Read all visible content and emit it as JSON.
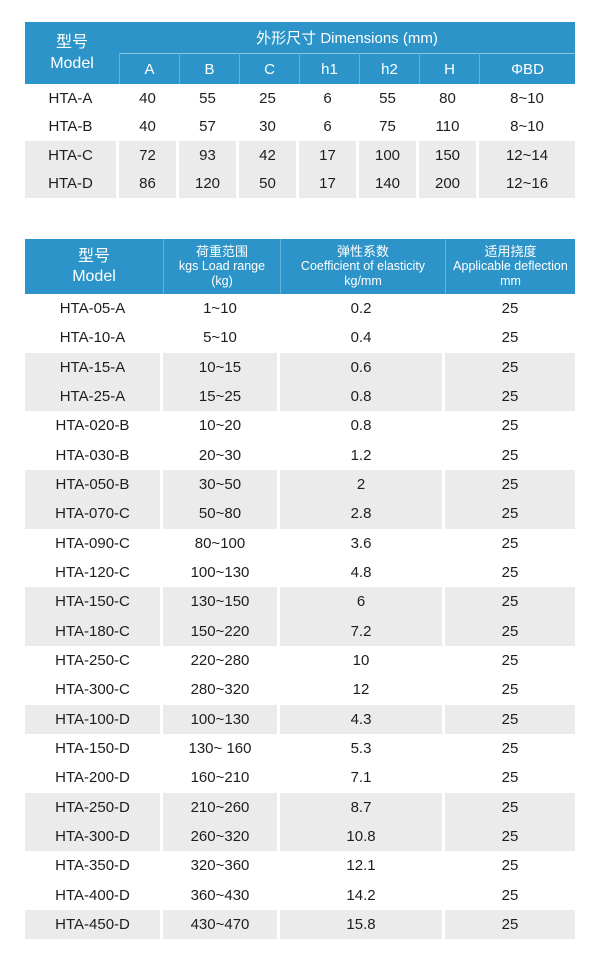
{
  "colors": {
    "header_blue": "#2C94C8",
    "shaded_row_gray": "#EBEBEB",
    "header_text": "#FFFFFF",
    "body_text": "#1E1E1E"
  },
  "dimensions_table": {
    "model_header": {
      "zh": "型号",
      "en": "Model"
    },
    "group_header": "外形尺寸 Dimensions (mm)",
    "sub_headers": [
      "A",
      "B",
      "C",
      "h1",
      "h2",
      "H",
      "ΦBD"
    ],
    "rows": [
      {
        "model": "HTA-A",
        "values": [
          "40",
          "55",
          "25",
          "6",
          "55",
          "80",
          "8~10"
        ],
        "shaded": false
      },
      {
        "model": "HTA-B",
        "values": [
          "40",
          "57",
          "30",
          "6",
          "75",
          "110",
          "8~10"
        ],
        "shaded": false
      },
      {
        "model": "HTA-C",
        "values": [
          "72",
          "93",
          "42",
          "17",
          "100",
          "150",
          "12~14"
        ],
        "shaded": true
      },
      {
        "model": "HTA-D",
        "values": [
          "86",
          "120",
          "50",
          "17",
          "140",
          "200",
          "12~16"
        ],
        "shaded": true
      }
    ]
  },
  "load_table": {
    "model_header": {
      "zh": "型号",
      "en": "Model"
    },
    "columns": [
      {
        "zh": "荷重范围",
        "en": "kgs Load range",
        "unit": "(kg)"
      },
      {
        "zh": "弹性系数",
        "en": "Coefficient of elasticity",
        "unit": "kg/mm"
      },
      {
        "zh": "适用挠度",
        "en": "Applicable deflection",
        "unit": "mm"
      }
    ],
    "rows": [
      {
        "model": "HTA-05-A",
        "load_range": "1~10",
        "coefficient": "0.2",
        "deflection": "25",
        "shaded": false
      },
      {
        "model": "HTA-10-A",
        "load_range": "5~10",
        "coefficient": "0.4",
        "deflection": "25",
        "shaded": false
      },
      {
        "model": "HTA-15-A",
        "load_range": "10~15",
        "coefficient": "0.6",
        "deflection": "25",
        "shaded": true
      },
      {
        "model": "HTA-25-A",
        "load_range": "15~25",
        "coefficient": "0.8",
        "deflection": "25",
        "shaded": true
      },
      {
        "model": "HTA-020-B",
        "load_range": "10~20",
        "coefficient": "0.8",
        "deflection": "25",
        "shaded": false
      },
      {
        "model": "HTA-030-B",
        "load_range": "20~30",
        "coefficient": "1.2",
        "deflection": "25",
        "shaded": false
      },
      {
        "model": "HTA-050-B",
        "load_range": "30~50",
        "coefficient": "2",
        "deflection": "25",
        "shaded": true
      },
      {
        "model": "HTA-070-C",
        "load_range": "50~80",
        "coefficient": "2.8",
        "deflection": "25",
        "shaded": true
      },
      {
        "model": "HTA-090-C",
        "load_range": "80~100",
        "coefficient": "3.6",
        "deflection": "25",
        "shaded": false
      },
      {
        "model": "HTA-120-C",
        "load_range": "100~130",
        "coefficient": "4.8",
        "deflection": "25",
        "shaded": false
      },
      {
        "model": "HTA-150-C",
        "load_range": "130~150",
        "coefficient": "6",
        "deflection": "25",
        "shaded": true
      },
      {
        "model": "HTA-180-C",
        "load_range": "150~220",
        "coefficient": "7.2",
        "deflection": "25",
        "shaded": true
      },
      {
        "model": "HTA-250-C",
        "load_range": "220~280",
        "coefficient": "10",
        "deflection": "25",
        "shaded": false
      },
      {
        "model": "HTA-300-C",
        "load_range": "280~320",
        "coefficient": "12",
        "deflection": "25",
        "shaded": false
      },
      {
        "model": "HTA-100-D",
        "load_range": "100~130",
        "coefficient": "4.3",
        "deflection": "25",
        "shaded": true
      },
      {
        "model": "HTA-150-D",
        "load_range": "130~ 160",
        "coefficient": "5.3",
        "deflection": "25",
        "shaded": false
      },
      {
        "model": "HTA-200-D",
        "load_range": "160~210",
        "coefficient": "7.1",
        "deflection": "25",
        "shaded": false
      },
      {
        "model": "HTA-250-D",
        "load_range": "210~260",
        "coefficient": "8.7",
        "deflection": "25",
        "shaded": true
      },
      {
        "model": "HTA-300-D",
        "load_range": "260~320",
        "coefficient": "10.8",
        "deflection": "25",
        "shaded": true
      },
      {
        "model": "HTA-350-D",
        "load_range": "320~360",
        "coefficient": "12.1",
        "deflection": "25",
        "shaded": false
      },
      {
        "model": "HTA-400-D",
        "load_range": "360~430",
        "coefficient": "14.2",
        "deflection": "25",
        "shaded": false
      },
      {
        "model": "HTA-450-D",
        "load_range": "430~470",
        "coefficient": "15.8",
        "deflection": "25",
        "shaded": true
      }
    ]
  }
}
